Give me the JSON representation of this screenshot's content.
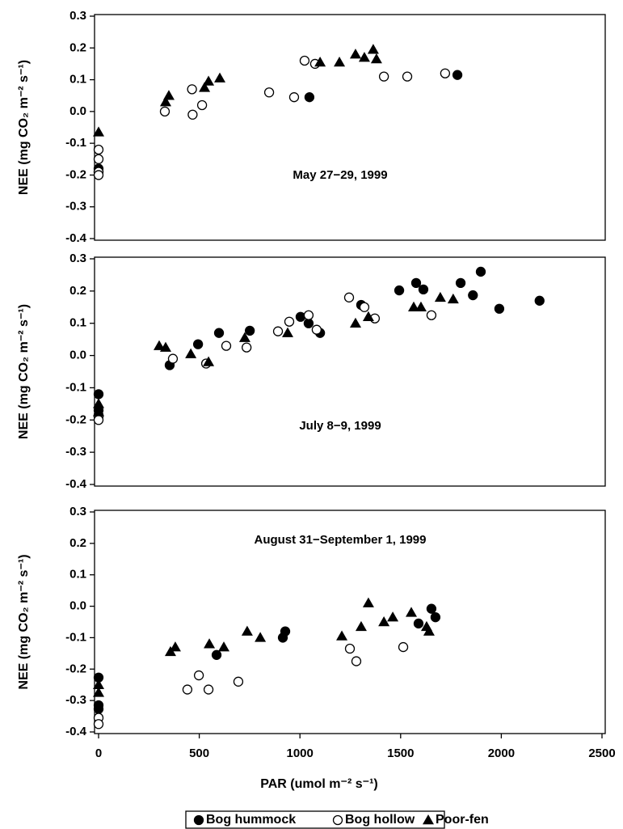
{
  "chart_data": [
    {
      "type": "scatter",
      "annotation": "May 27−29, 1999",
      "ylabel": "NEE (mg CO₂ m⁻² s⁻¹)",
      "xlim": [
        0,
        2500
      ],
      "ylim": [
        -0.4,
        0.3
      ],
      "yticks": [
        0.3,
        0.2,
        0.1,
        {
          "value": 0,
          "label": "0.0"
        },
        -0.1,
        -0.2,
        -0.3,
        -0.4
      ],
      "legend": "bottom",
      "series": [
        {
          "name": "Bog hummock",
          "marker": "filled-circle",
          "color": "#000000",
          "x": [
            0,
            0,
            1047,
            1782
          ],
          "values": [
            -0.18,
            -0.19,
            0.045,
            0.115
          ]
        },
        {
          "name": "Bog hollow",
          "marker": "open-circle",
          "color": "#000000",
          "x": [
            0,
            0,
            0,
            0,
            329,
            464,
            467,
            514,
            847,
            971,
            1023,
            1075,
            1417,
            1533,
            1721
          ],
          "values": [
            -0.12,
            -0.15,
            -0.19,
            -0.2,
            0,
            0.07,
            -0.01,
            0.02,
            0.06,
            0.045,
            0.16,
            0.15,
            0.11,
            0.11,
            0.12
          ]
        },
        {
          "name": "Poor-fen",
          "marker": "filled-triangle",
          "color": "#000000",
          "x": [
            0,
            333,
            349,
            526,
            546,
            602,
            1100,
            1196,
            1276,
            1320,
            1364,
            1380
          ],
          "values": [
            -0.065,
            0.03,
            0.05,
            0.075,
            0.095,
            0.105,
            0.155,
            0.155,
            0.18,
            0.17,
            0.195,
            0.165
          ]
        }
      ]
    },
    {
      "type": "scatter",
      "annotation": "July 8−9, 1999",
      "ylabel": "NEE (mg CO₂ m⁻² s⁻¹)",
      "xlim": [
        0,
        2500
      ],
      "ylim": [
        -0.4,
        0.3
      ],
      "yticks": [
        0.3,
        0.2,
        0.1,
        {
          "value": 0,
          "label": "0.0"
        },
        -0.1,
        -0.2,
        -0.3,
        -0.4
      ],
      "series": [
        {
          "marker": "filled-circle",
          "color": "#000000",
          "x": [
            0,
            0,
            0,
            353,
            494,
            598,
            751,
            1003,
            1043,
            1100,
            1304,
            1493,
            1577,
            1613,
            1798,
            1859,
            1898,
            1990,
            2190
          ],
          "values": [
            -0.12,
            -0.17,
            -0.185,
            -0.03,
            0.035,
            0.07,
            0.077,
            0.12,
            0.1,
            0.07,
            0.157,
            0.202,
            0.225,
            0.205,
            0.225,
            0.187,
            0.26,
            0.145,
            0.17
          ]
        },
        {
          "marker": "open-circle",
          "color": "#000000",
          "x": [
            0,
            0,
            369,
            534,
            634,
            735,
            891,
            947,
            1043,
            1083,
            1244,
            1320,
            1372,
            1653
          ],
          "values": [
            -0.19,
            -0.2,
            -0.01,
            -0.025,
            0.03,
            0.025,
            0.075,
            0.105,
            0.125,
            0.08,
            0.18,
            0.15,
            0.115,
            0.125
          ]
        },
        {
          "marker": "filled-triangle",
          "color": "#000000",
          "x": [
            0,
            0,
            301,
            333,
            458,
            546,
            726,
            939,
            1276,
            1340,
            1565,
            1601,
            1697,
            1761
          ],
          "values": [
            -0.15,
            -0.175,
            0.03,
            0.025,
            0.005,
            -0.02,
            0.055,
            0.07,
            0.1,
            0.12,
            0.15,
            0.15,
            0.18,
            0.175
          ]
        }
      ]
    },
    {
      "type": "scatter",
      "annotation": "August 31−September 1, 1999",
      "ylabel": "NEE (mg CO₂ m⁻² s⁻¹)",
      "xlabel": "PAR (umol m⁻² s⁻¹)",
      "xlim": [
        0,
        2500
      ],
      "ylim": [
        -0.4,
        0.3
      ],
      "xticks": [
        0,
        500,
        1000,
        1500,
        2000,
        2500
      ],
      "yticks": [
        0.3,
        0.2,
        0.1,
        {
          "value": 0,
          "label": "0.0"
        },
        -0.1,
        -0.2,
        -0.3,
        -0.4
      ],
      "series": [
        {
          "marker": "filled-circle",
          "color": "#000000",
          "x": [
            0,
            0,
            0,
            586,
            915,
            927,
            1589,
            1653,
            1673
          ],
          "values": [
            -0.227,
            -0.315,
            -0.327,
            -0.155,
            -0.1,
            -0.08,
            -0.055,
            -0.008,
            -0.035
          ]
        },
        {
          "marker": "open-circle",
          "color": "#000000",
          "x": [
            0,
            0,
            441,
            498,
            546,
            694,
            1248,
            1280,
            1513
          ],
          "values": [
            -0.355,
            -0.375,
            -0.265,
            -0.22,
            -0.265,
            -0.24,
            -0.135,
            -0.175,
            -0.13
          ]
        },
        {
          "marker": "filled-triangle",
          "color": "#000000",
          "x": [
            0,
            0,
            357,
            381,
            550,
            622,
            738,
            803,
            1208,
            1304,
            1340,
            1417,
            1461,
            1553,
            1629,
            1641
          ],
          "values": [
            -0.25,
            -0.275,
            -0.145,
            -0.13,
            -0.12,
            -0.13,
            -0.08,
            -0.1,
            -0.095,
            -0.065,
            0.01,
            -0.05,
            -0.035,
            -0.02,
            -0.065,
            -0.08
          ]
        }
      ]
    }
  ]
}
